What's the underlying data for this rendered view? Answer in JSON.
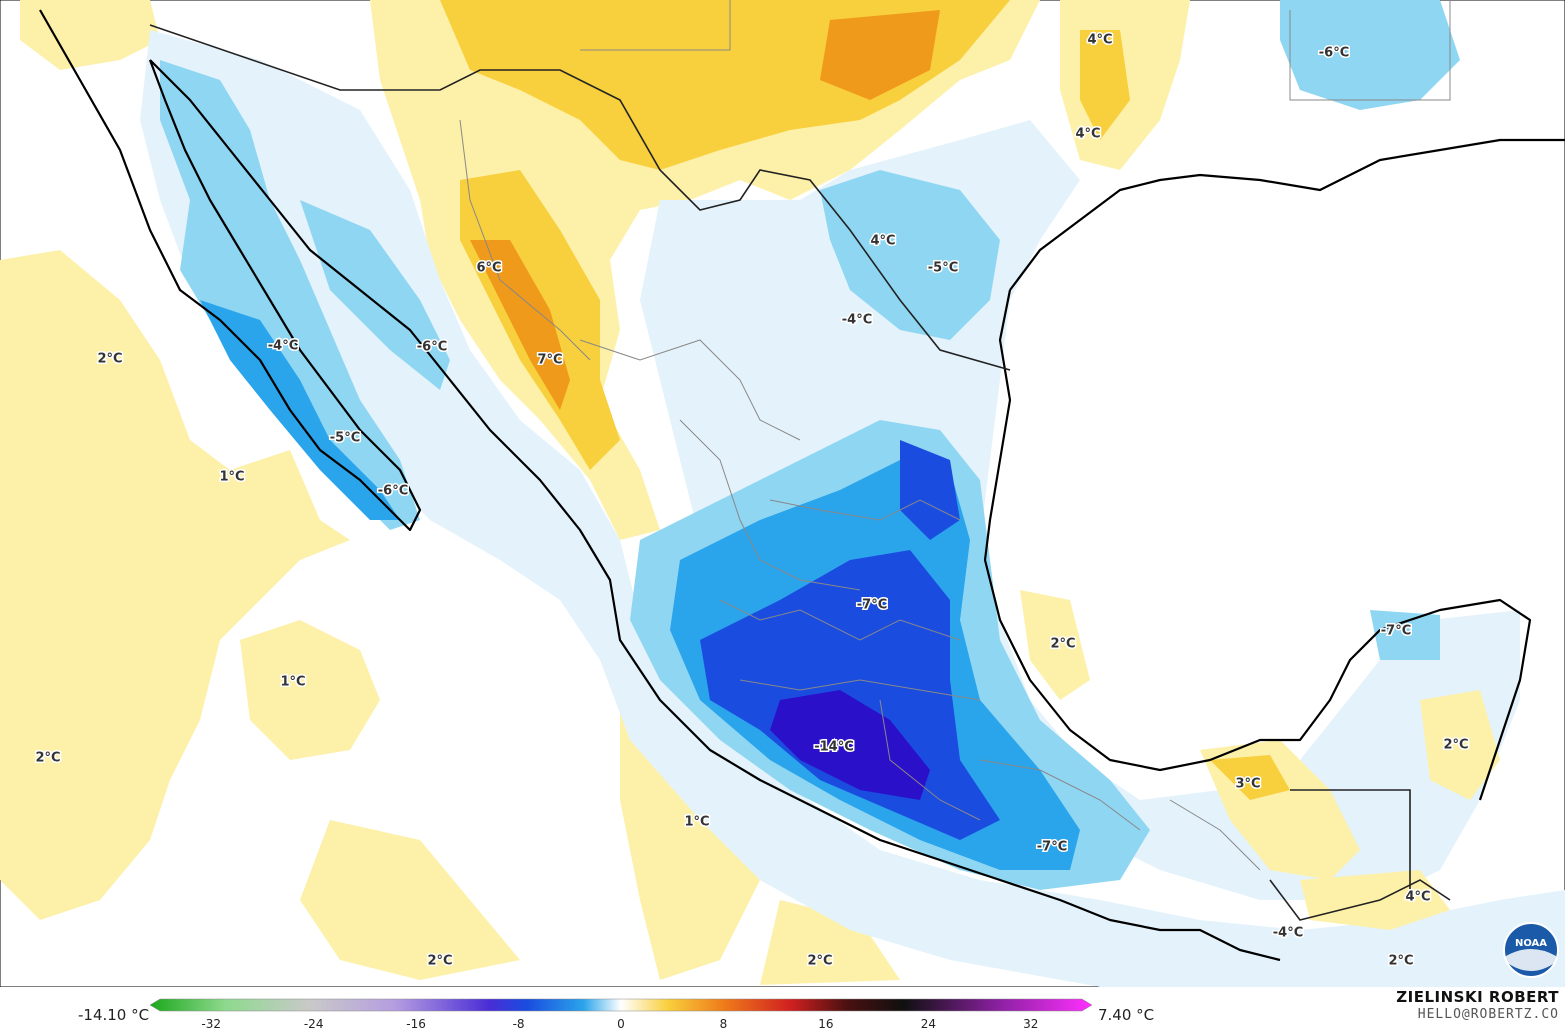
{
  "map": {
    "anomaly_labels": [
      {
        "text": "4°C"
      },
      {
        "text": "4°C"
      },
      {
        "text": "-6°C"
      },
      {
        "text": "6°C"
      },
      {
        "text": "7°C"
      },
      {
        "text": "4°C"
      },
      {
        "text": "-5°C"
      },
      {
        "text": "-4°C"
      },
      {
        "text": "2°C"
      },
      {
        "text": "-4°C"
      },
      {
        "text": "-6°C"
      },
      {
        "text": "-5°C"
      },
      {
        "text": "-6°C"
      },
      {
        "text": "1°C"
      },
      {
        "text": "-7°C"
      },
      {
        "text": "2°C"
      },
      {
        "text": "-7°C"
      },
      {
        "text": "1°C"
      },
      {
        "text": "2°C"
      },
      {
        "text": "-14°C"
      },
      {
        "text": "2°C"
      },
      {
        "text": "3°C"
      },
      {
        "text": "1°C"
      },
      {
        "text": "-7°C"
      },
      {
        "text": "4°C"
      },
      {
        "text": "2°C"
      },
      {
        "text": "-4°C"
      },
      {
        "text": "2°C"
      },
      {
        "text": "2°C"
      }
    ]
  },
  "colorbar": {
    "min_label": "-14.10 °C",
    "max_label": "7.40 °C",
    "ticks": [
      "-32",
      "-24",
      "-16",
      "-8",
      "0",
      "8",
      "16",
      "24",
      "32"
    ],
    "range": [
      -36,
      36
    ]
  },
  "credit": {
    "author": "ZIELINSKI ROBERT",
    "email": "HELLO@ROBERTZ.CO"
  },
  "logo": {
    "text": "NOAA",
    "icon": "noaa-logo-icon"
  },
  "colors": {
    "warm_light": "#fdf0a8",
    "warm_mid": "#f8cf3c",
    "warm_strong": "#ef9a1a",
    "cool_light": "#e4f3fb",
    "cool_mid": "#8fd6f3",
    "cool_strong": "#2aa4ea",
    "cool_deep": "#1a4ce0",
    "cool_extreme": "#2a10c8",
    "coast": "#000000"
  }
}
